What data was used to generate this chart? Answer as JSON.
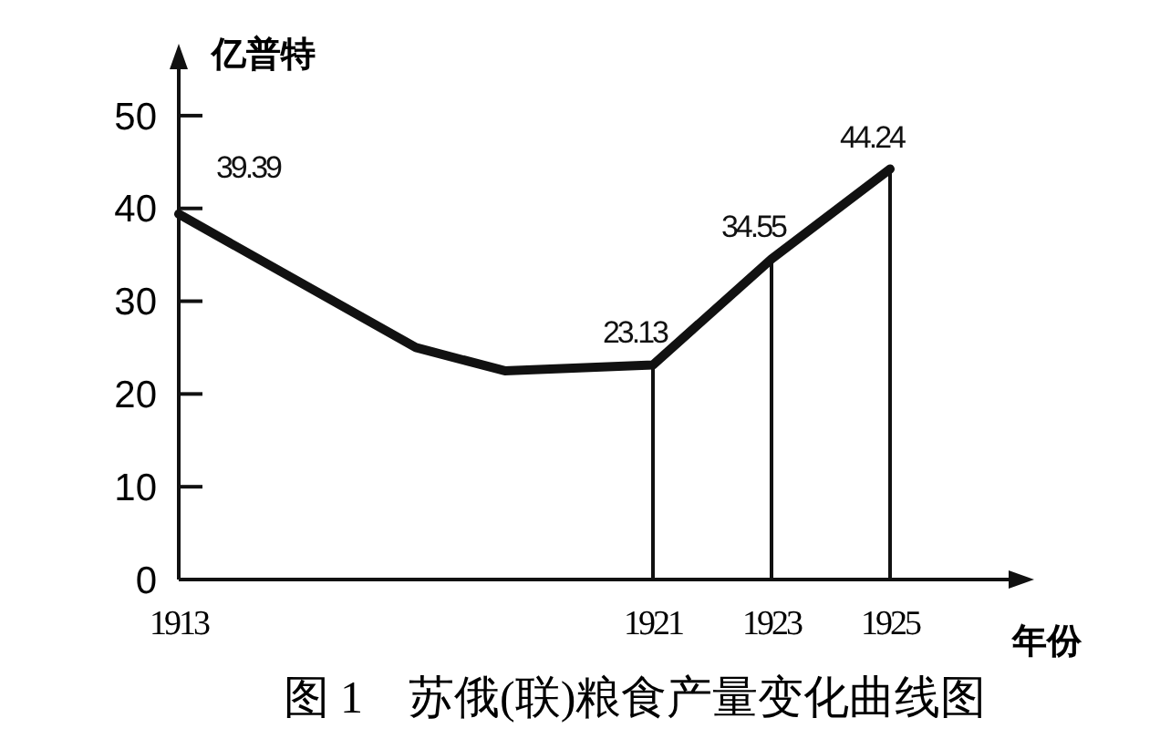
{
  "chart_data": {
    "type": "line",
    "title": "图 1　苏俄(联)粮食产量变化曲线图",
    "ylabel": "亿普特",
    "xlabel": "年份",
    "x": [
      1913,
      1917,
      1918.5,
      1921,
      1923,
      1925
    ],
    "series": [
      {
        "color": "#111111",
        "values": [
          39.39,
          25,
          22.5,
          23.13,
          34.55,
          44.24
        ],
        "value_labels": [
          "39.39",
          null,
          null,
          "23.13",
          "34.55",
          "44.24"
        ]
      }
    ],
    "xlim": [
      1913,
      1927
    ],
    "xticks": [
      1913,
      1921,
      1923,
      1925
    ],
    "ylim": [
      0,
      55
    ],
    "yticks": [
      0,
      10,
      20,
      30,
      40,
      50
    ],
    "ref_lines": [
      {
        "axis": "x",
        "value": 1921,
        "color": "#111111"
      },
      {
        "axis": "x",
        "value": 1923,
        "color": "#111111"
      },
      {
        "axis": "x",
        "value": 1925,
        "color": "#111111"
      }
    ],
    "grid": false,
    "marker": "none",
    "line_style": "solid"
  }
}
